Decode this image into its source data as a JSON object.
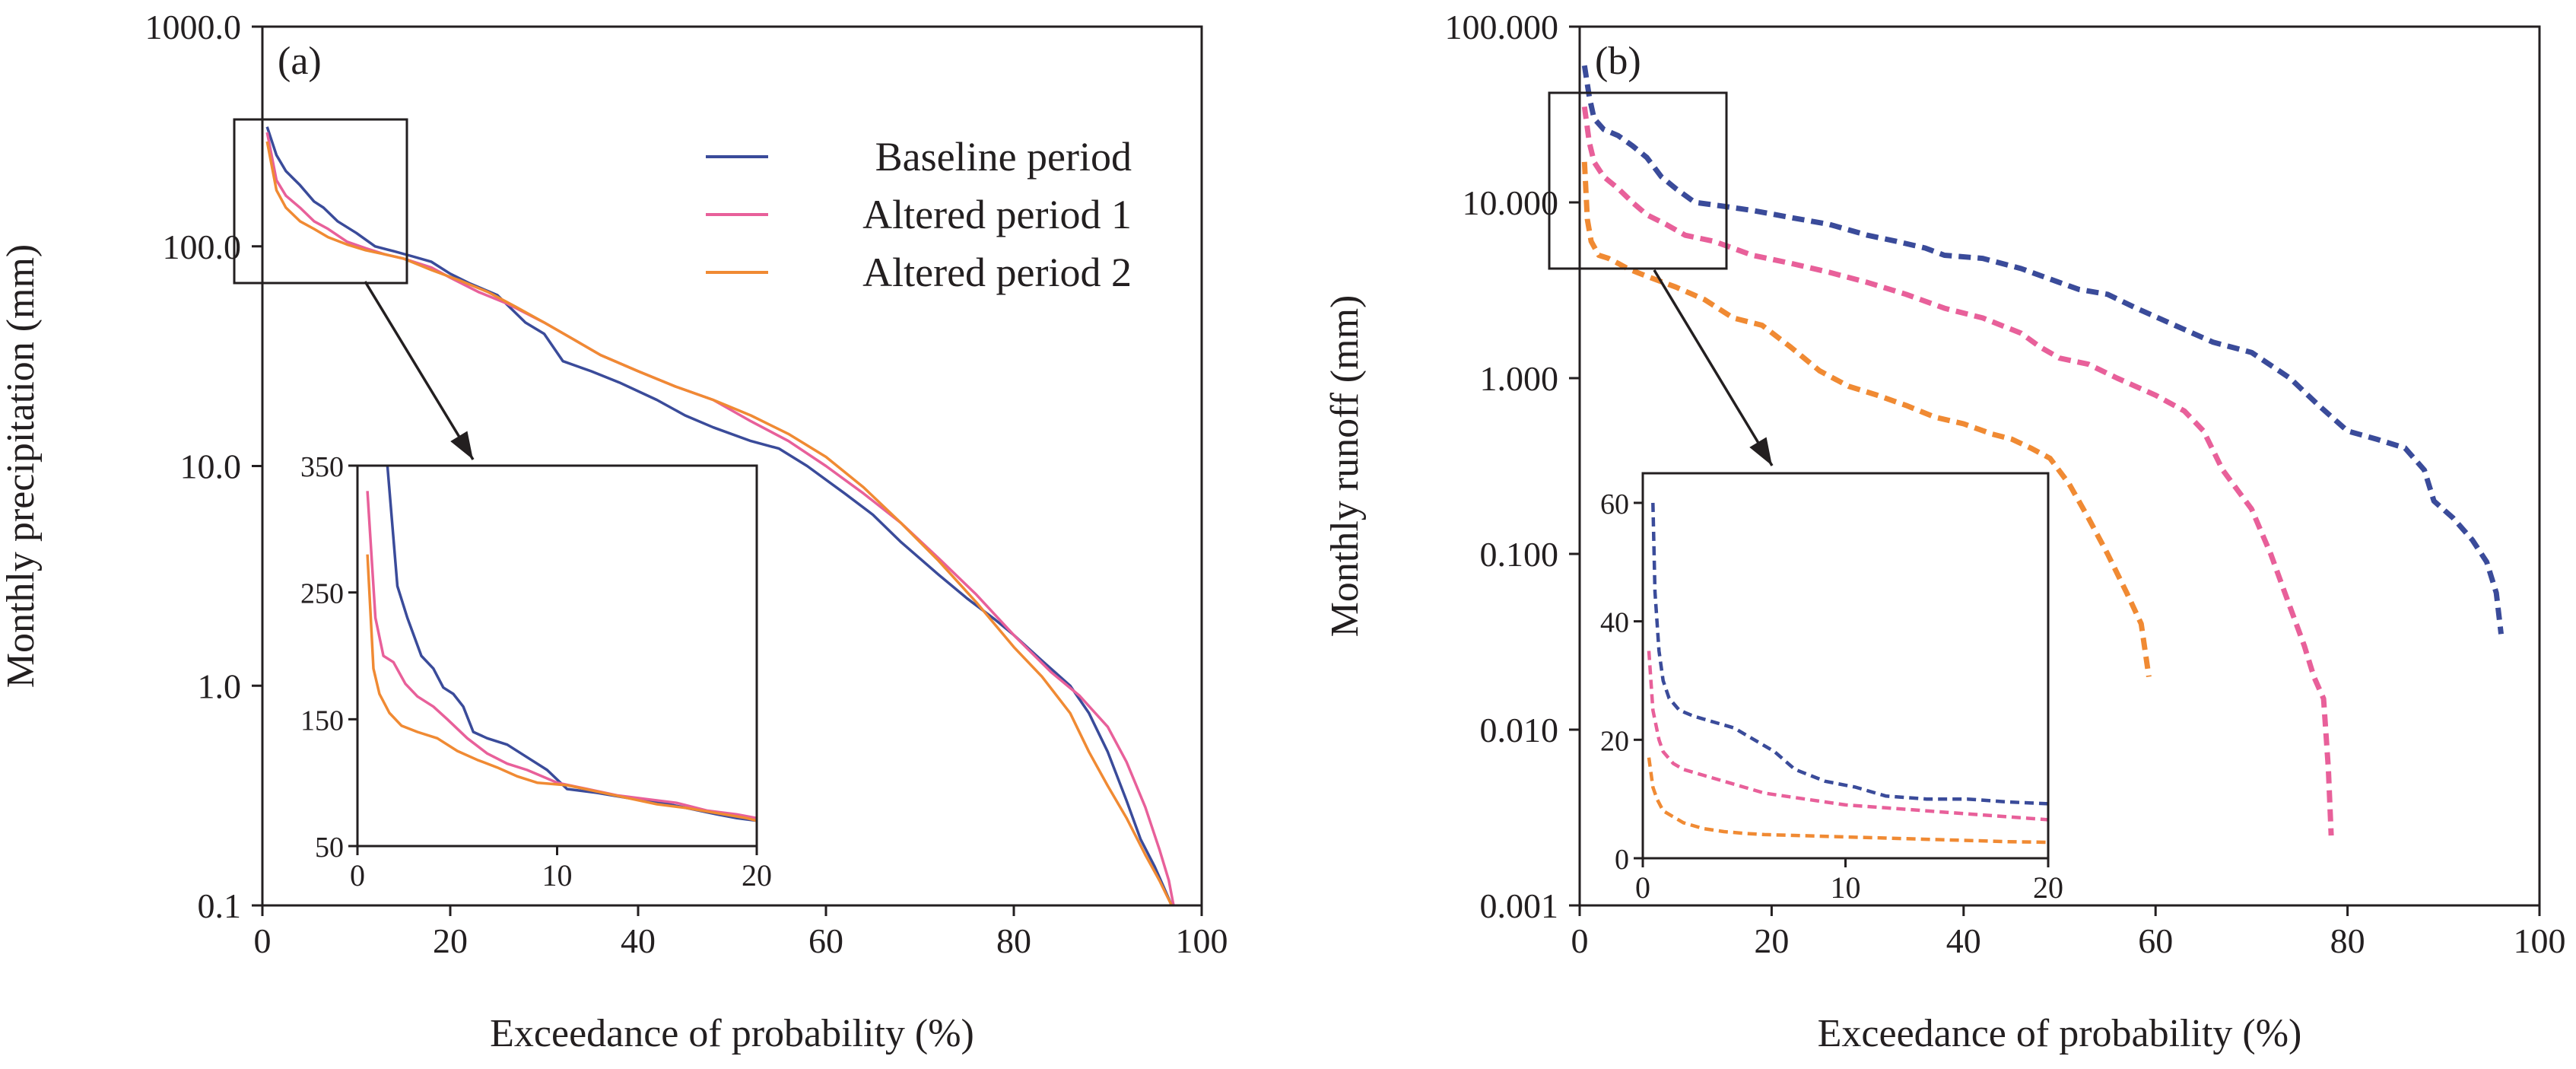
{
  "chart_data": [
    {
      "id": "a",
      "type": "line",
      "panel_label": "(a)",
      "xlabel": "Exceedance of probability (%)",
      "ylabel": "Monthly precipitation (mm)",
      "xlim": [
        0,
        100
      ],
      "ylim": [
        0.1,
        1000
      ],
      "yscale": "log",
      "xticks": [
        0,
        20,
        40,
        60,
        80,
        100
      ],
      "xtick_labels": [
        "0",
        "20",
        "40",
        "60",
        "80",
        "100"
      ],
      "yticks": [
        0.1,
        1,
        10,
        100,
        1000
      ],
      "ytick_labels": [
        "0.1",
        "1.0",
        "10.0",
        "100.0",
        "1000.0"
      ],
      "line_style": "solid",
      "legend_position": "top-right",
      "legend": [
        {
          "name": "Baseline period",
          "color": "#3a4b9a"
        },
        {
          "name": "Altered period 1",
          "color": "#e8609a"
        },
        {
          "name": "Altered period 2",
          "color": "#f08a33"
        }
      ],
      "series": [
        {
          "name": "Baseline period",
          "color": "#3a4b9a",
          "x": [
            0.5,
            1.5,
            2.5,
            4,
            5.5,
            6.5,
            8,
            10,
            12,
            14,
            16,
            18,
            20,
            22,
            25,
            28,
            30,
            32,
            35,
            38,
            42,
            45,
            48,
            52,
            55,
            58,
            62,
            65,
            68,
            72,
            75,
            78,
            80,
            83,
            86,
            88,
            90,
            92,
            93.5,
            95,
            96,
            96.8
          ],
          "y": [
            350,
            260,
            220,
            190,
            160,
            150,
            130,
            115,
            100,
            95,
            90,
            85,
            75,
            68,
            60,
            45,
            40,
            30,
            27,
            24,
            20,
            17,
            15,
            13,
            12,
            10,
            7.5,
            6,
            4.5,
            3.2,
            2.5,
            2.0,
            1.7,
            1.3,
            1.0,
            0.75,
            0.5,
            0.3,
            0.2,
            0.15,
            0.12,
            0.1
          ]
        },
        {
          "name": "Altered period 1",
          "color": "#e8609a",
          "x": [
            0.5,
            1.5,
            2.5,
            4,
            5.5,
            7,
            9,
            11,
            13,
            15,
            18,
            20,
            23,
            26,
            30,
            33,
            36,
            40,
            44,
            48,
            52,
            56,
            60,
            64,
            68,
            72,
            76,
            80,
            84,
            87,
            90,
            92,
            94,
            95.5,
            96.5,
            97
          ],
          "y": [
            330,
            200,
            170,
            150,
            130,
            120,
            105,
            98,
            92,
            88,
            80,
            72,
            62,
            55,
            45,
            38,
            32,
            27,
            23,
            20,
            16,
            13,
            10,
            7.5,
            5.5,
            3.8,
            2.6,
            1.7,
            1.15,
            0.9,
            0.65,
            0.45,
            0.28,
            0.18,
            0.13,
            0.1
          ]
        },
        {
          "name": "Altered period 2",
          "color": "#f08a33",
          "x": [
            0.5,
            1.5,
            2.5,
            4,
            5.5,
            7,
            9,
            11,
            13,
            15,
            18,
            21,
            24,
            27,
            30,
            33,
            36,
            40,
            44,
            48,
            52,
            56,
            60,
            64,
            68,
            72,
            76,
            80,
            83,
            86,
            88,
            90,
            92,
            94,
            95.5,
            96.8
          ],
          "y": [
            300,
            180,
            150,
            130,
            120,
            110,
            102,
            96,
            92,
            88,
            78,
            70,
            62,
            53,
            45,
            38,
            32,
            27,
            23,
            20,
            17,
            14,
            11,
            8,
            5.5,
            3.7,
            2.4,
            1.5,
            1.1,
            0.75,
            0.5,
            0.35,
            0.25,
            0.17,
            0.13,
            0.1
          ]
        }
      ],
      "inset": {
        "xlim": [
          0,
          20
        ],
        "ylim": [
          50,
          350
        ],
        "xticks": [
          0,
          10,
          20
        ],
        "xtick_labels": [
          "0",
          "10",
          "20"
        ],
        "yticks": [
          50,
          150,
          250,
          350
        ],
        "ytick_labels": [
          "50",
          "150",
          "250",
          "350"
        ],
        "series": [
          {
            "name": "Baseline period",
            "color": "#3a4b9a",
            "x": [
              1.5,
              2.0,
              2.5,
              3.2,
              3.8,
              4.3,
              4.8,
              5.3,
              5.8,
              6.5,
              7.5,
              8.5,
              9.5,
              10.5,
              12,
              13.5,
              15,
              16.5,
              18,
              19,
              20
            ],
            "y": [
              350,
              255,
              230,
              200,
              190,
              175,
              170,
              160,
              140,
              135,
              130,
              120,
              110,
              95,
              92,
              88,
              85,
              80,
              75,
              72,
              70
            ]
          },
          {
            "name": "Altered period 1",
            "color": "#e8609a",
            "x": [
              0.5,
              0.9,
              1.3,
              1.8,
              2.4,
              3.0,
              3.8,
              4.5,
              5.5,
              6.5,
              7.5,
              8.5,
              10,
              11.5,
              13,
              14.5,
              16,
              17.5,
              19,
              20
            ],
            "y": [
              330,
              230,
              200,
              195,
              178,
              168,
              160,
              150,
              135,
              123,
              115,
              110,
              100,
              95,
              90,
              87,
              84,
              78,
              75,
              72
            ]
          },
          {
            "name": "Altered period 2",
            "color": "#f08a33",
            "x": [
              0.5,
              0.8,
              1.1,
              1.6,
              2.2,
              3.0,
              4.0,
              5.0,
              6.0,
              7.0,
              8.0,
              9.0,
              10.5,
              12,
              13.5,
              15,
              16.5,
              18,
              19.5,
              20
            ],
            "y": [
              280,
              190,
              170,
              155,
              145,
              140,
              135,
              125,
              118,
              112,
              105,
              100,
              98,
              93,
              88,
              83,
              80,
              76,
              72,
              70
            ]
          }
        ]
      }
    },
    {
      "id": "b",
      "type": "line",
      "panel_label": "(b)",
      "xlabel": "Exceedance of probability (%)",
      "ylabel": "Monthly runoff (mm)",
      "xlim": [
        0,
        100
      ],
      "ylim": [
        0.001,
        100
      ],
      "yscale": "log",
      "xticks": [
        0,
        20,
        40,
        60,
        80,
        100
      ],
      "xtick_labels": [
        "0",
        "20",
        "40",
        "60",
        "80",
        "100"
      ],
      "yticks": [
        0.001,
        0.01,
        0.1,
        1,
        10,
        100
      ],
      "ytick_labels": [
        "0.001",
        "0.010",
        "0.100",
        "1.000",
        "10.000",
        "100.000"
      ],
      "line_style": "dashed",
      "series": [
        {
          "name": "Baseline period",
          "color": "#3a4b9a",
          "x": [
            0.5,
            1.0,
            1.5,
            2.5,
            4,
            5.5,
            7,
            8.5,
            10,
            12,
            15,
            18,
            22,
            26,
            30,
            33,
            36,
            38,
            42,
            46,
            50,
            52,
            55,
            58,
            62,
            66,
            70,
            74,
            77,
            80,
            83,
            86,
            88,
            89,
            91,
            93,
            94.5,
            95.5,
            96
          ],
          "y": [
            60,
            40,
            30,
            26,
            24,
            21,
            18,
            14,
            12,
            10,
            9.5,
            9,
            8.2,
            7.5,
            6.5,
            6,
            5.5,
            5,
            4.8,
            4.2,
            3.5,
            3.2,
            3.0,
            2.5,
            2.0,
            1.6,
            1.4,
            1.0,
            0.7,
            0.5,
            0.45,
            0.4,
            0.3,
            0.2,
            0.16,
            0.12,
            0.09,
            0.06,
            0.035
          ]
        },
        {
          "name": "Altered period 1",
          "color": "#e8609a",
          "x": [
            0.5,
            1.0,
            1.5,
            2.5,
            4,
            5.5,
            7,
            9,
            11,
            14,
            18,
            22,
            26,
            30,
            34,
            38,
            42,
            46,
            48,
            50,
            53,
            56,
            60,
            63,
            65,
            67,
            70,
            72,
            74,
            75.5,
            76.5,
            77.5,
            78,
            78.3
          ],
          "y": [
            35,
            22,
            17,
            14,
            12,
            10,
            8.5,
            7.5,
            6.5,
            6,
            5,
            4.5,
            4,
            3.5,
            3,
            2.5,
            2.2,
            1.8,
            1.5,
            1.3,
            1.2,
            1.0,
            0.8,
            0.65,
            0.5,
            0.3,
            0.18,
            0.1,
            0.05,
            0.03,
            0.02,
            0.015,
            0.006,
            0.0025
          ]
        },
        {
          "name": "Altered period 2",
          "color": "#f08a33",
          "x": [
            0.5,
            0.8,
            1.2,
            2,
            3,
            4,
            5,
            7,
            10,
            13,
            16,
            19,
            22,
            25,
            28,
            31,
            34,
            37,
            40,
            43,
            45,
            47,
            49,
            51,
            53,
            55,
            57,
            58.5,
            59.3
          ],
          "y": [
            17,
            8,
            6,
            5,
            4.8,
            4.5,
            4.2,
            3.8,
            3.3,
            2.8,
            2.2,
            2.0,
            1.5,
            1.1,
            0.9,
            0.8,
            0.7,
            0.6,
            0.55,
            0.48,
            0.45,
            0.4,
            0.35,
            0.25,
            0.16,
            0.1,
            0.06,
            0.04,
            0.02
          ]
        }
      ],
      "inset": {
        "xlim": [
          0,
          20
        ],
        "ylim": [
          0,
          65
        ],
        "xticks": [
          0,
          10,
          20
        ],
        "xtick_labels": [
          "0",
          "10",
          "20"
        ],
        "yticks": [
          0,
          20,
          40,
          60
        ],
        "ytick_labels": [
          "0",
          "20",
          "40",
          "60"
        ],
        "series": [
          {
            "name": "Baseline period",
            "color": "#3a4b9a",
            "x": [
              0.5,
              0.6,
              0.8,
              1.0,
              1.3,
              1.8,
              2.5,
              3.5,
              4.5,
              5.5,
              6.5,
              7.5,
              9,
              10.5,
              12,
              14,
              16,
              18,
              20
            ],
            "y": [
              60,
              45,
              35,
              30,
              27,
              25,
              24,
              23,
              22,
              20,
              18,
              15,
              13,
              12,
              10.5,
              10,
              10,
              9.5,
              9.2
            ]
          },
          {
            "name": "Altered period 1",
            "color": "#e8609a",
            "x": [
              0.3,
              0.5,
              0.8,
              1.0,
              1.5,
              2.0,
              3.0,
              4.0,
              5.0,
              6.0,
              8.0,
              10,
              12,
              14,
              16,
              18,
              20
            ],
            "y": [
              35,
              25,
              20,
              18,
              16,
              15,
              14,
              13,
              12,
              11,
              10,
              9,
              8.5,
              8,
              7.5,
              7,
              6.5
            ]
          },
          {
            "name": "Altered period 2",
            "color": "#f08a33",
            "x": [
              0.3,
              0.5,
              0.7,
              1.0,
              1.5,
              2.0,
              3.0,
              4.0,
              5.0,
              6.0,
              8.0,
              10,
              12,
              14,
              16,
              18,
              20
            ],
            "y": [
              17,
              12,
              10,
              8,
              7,
              6,
              5,
              4.5,
              4.2,
              4,
              3.8,
              3.6,
              3.4,
              3.2,
              3.0,
              2.8,
              2.7
            ]
          }
        ]
      }
    }
  ]
}
